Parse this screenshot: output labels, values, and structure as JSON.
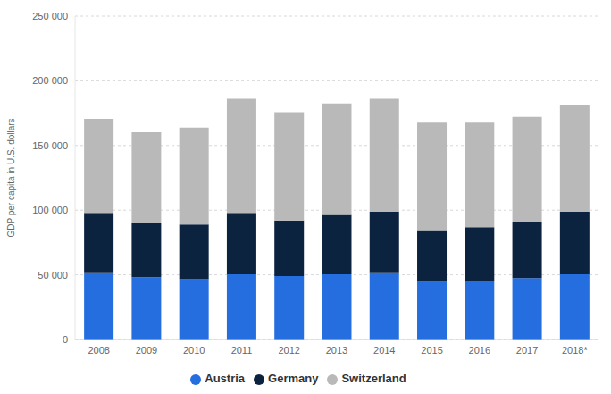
{
  "chart_data": {
    "type": "bar",
    "stacked": true,
    "y_label": "GDP per capita in U.S. dollars",
    "categories": [
      "2008",
      "2009",
      "2010",
      "2011",
      "2012",
      "2013",
      "2014",
      "2015",
      "2016",
      "2017",
      "2018*"
    ],
    "series": [
      {
        "name": "Austria",
        "color": "#246ee0",
        "values": [
          51200,
          48200,
          46700,
          50400,
          49000,
          50400,
          51200,
          44500,
          45300,
          47500,
          50400
        ]
      },
      {
        "name": "Germany",
        "color": "#0c2340",
        "values": [
          46700,
          41600,
          42300,
          47500,
          43000,
          46000,
          47500,
          40100,
          41500,
          43700,
          48300
        ]
      },
      {
        "name": "Switzerland",
        "color": "#b9b9b9",
        "values": [
          72700,
          70400,
          74900,
          88300,
          83800,
          86100,
          87500,
          83100,
          80900,
          80900,
          83000
        ]
      }
    ],
    "ylim": [
      0,
      250000
    ],
    "yticks": [
      {
        "value": 0,
        "label": "0"
      },
      {
        "value": 50000,
        "label": "50 000"
      },
      {
        "value": 100000,
        "label": "100 000"
      },
      {
        "value": 150000,
        "label": "150 000"
      },
      {
        "value": 200000,
        "label": "200 000"
      },
      {
        "value": 250000,
        "label": "250 000"
      }
    ],
    "grid": true,
    "legend": "bottom"
  }
}
